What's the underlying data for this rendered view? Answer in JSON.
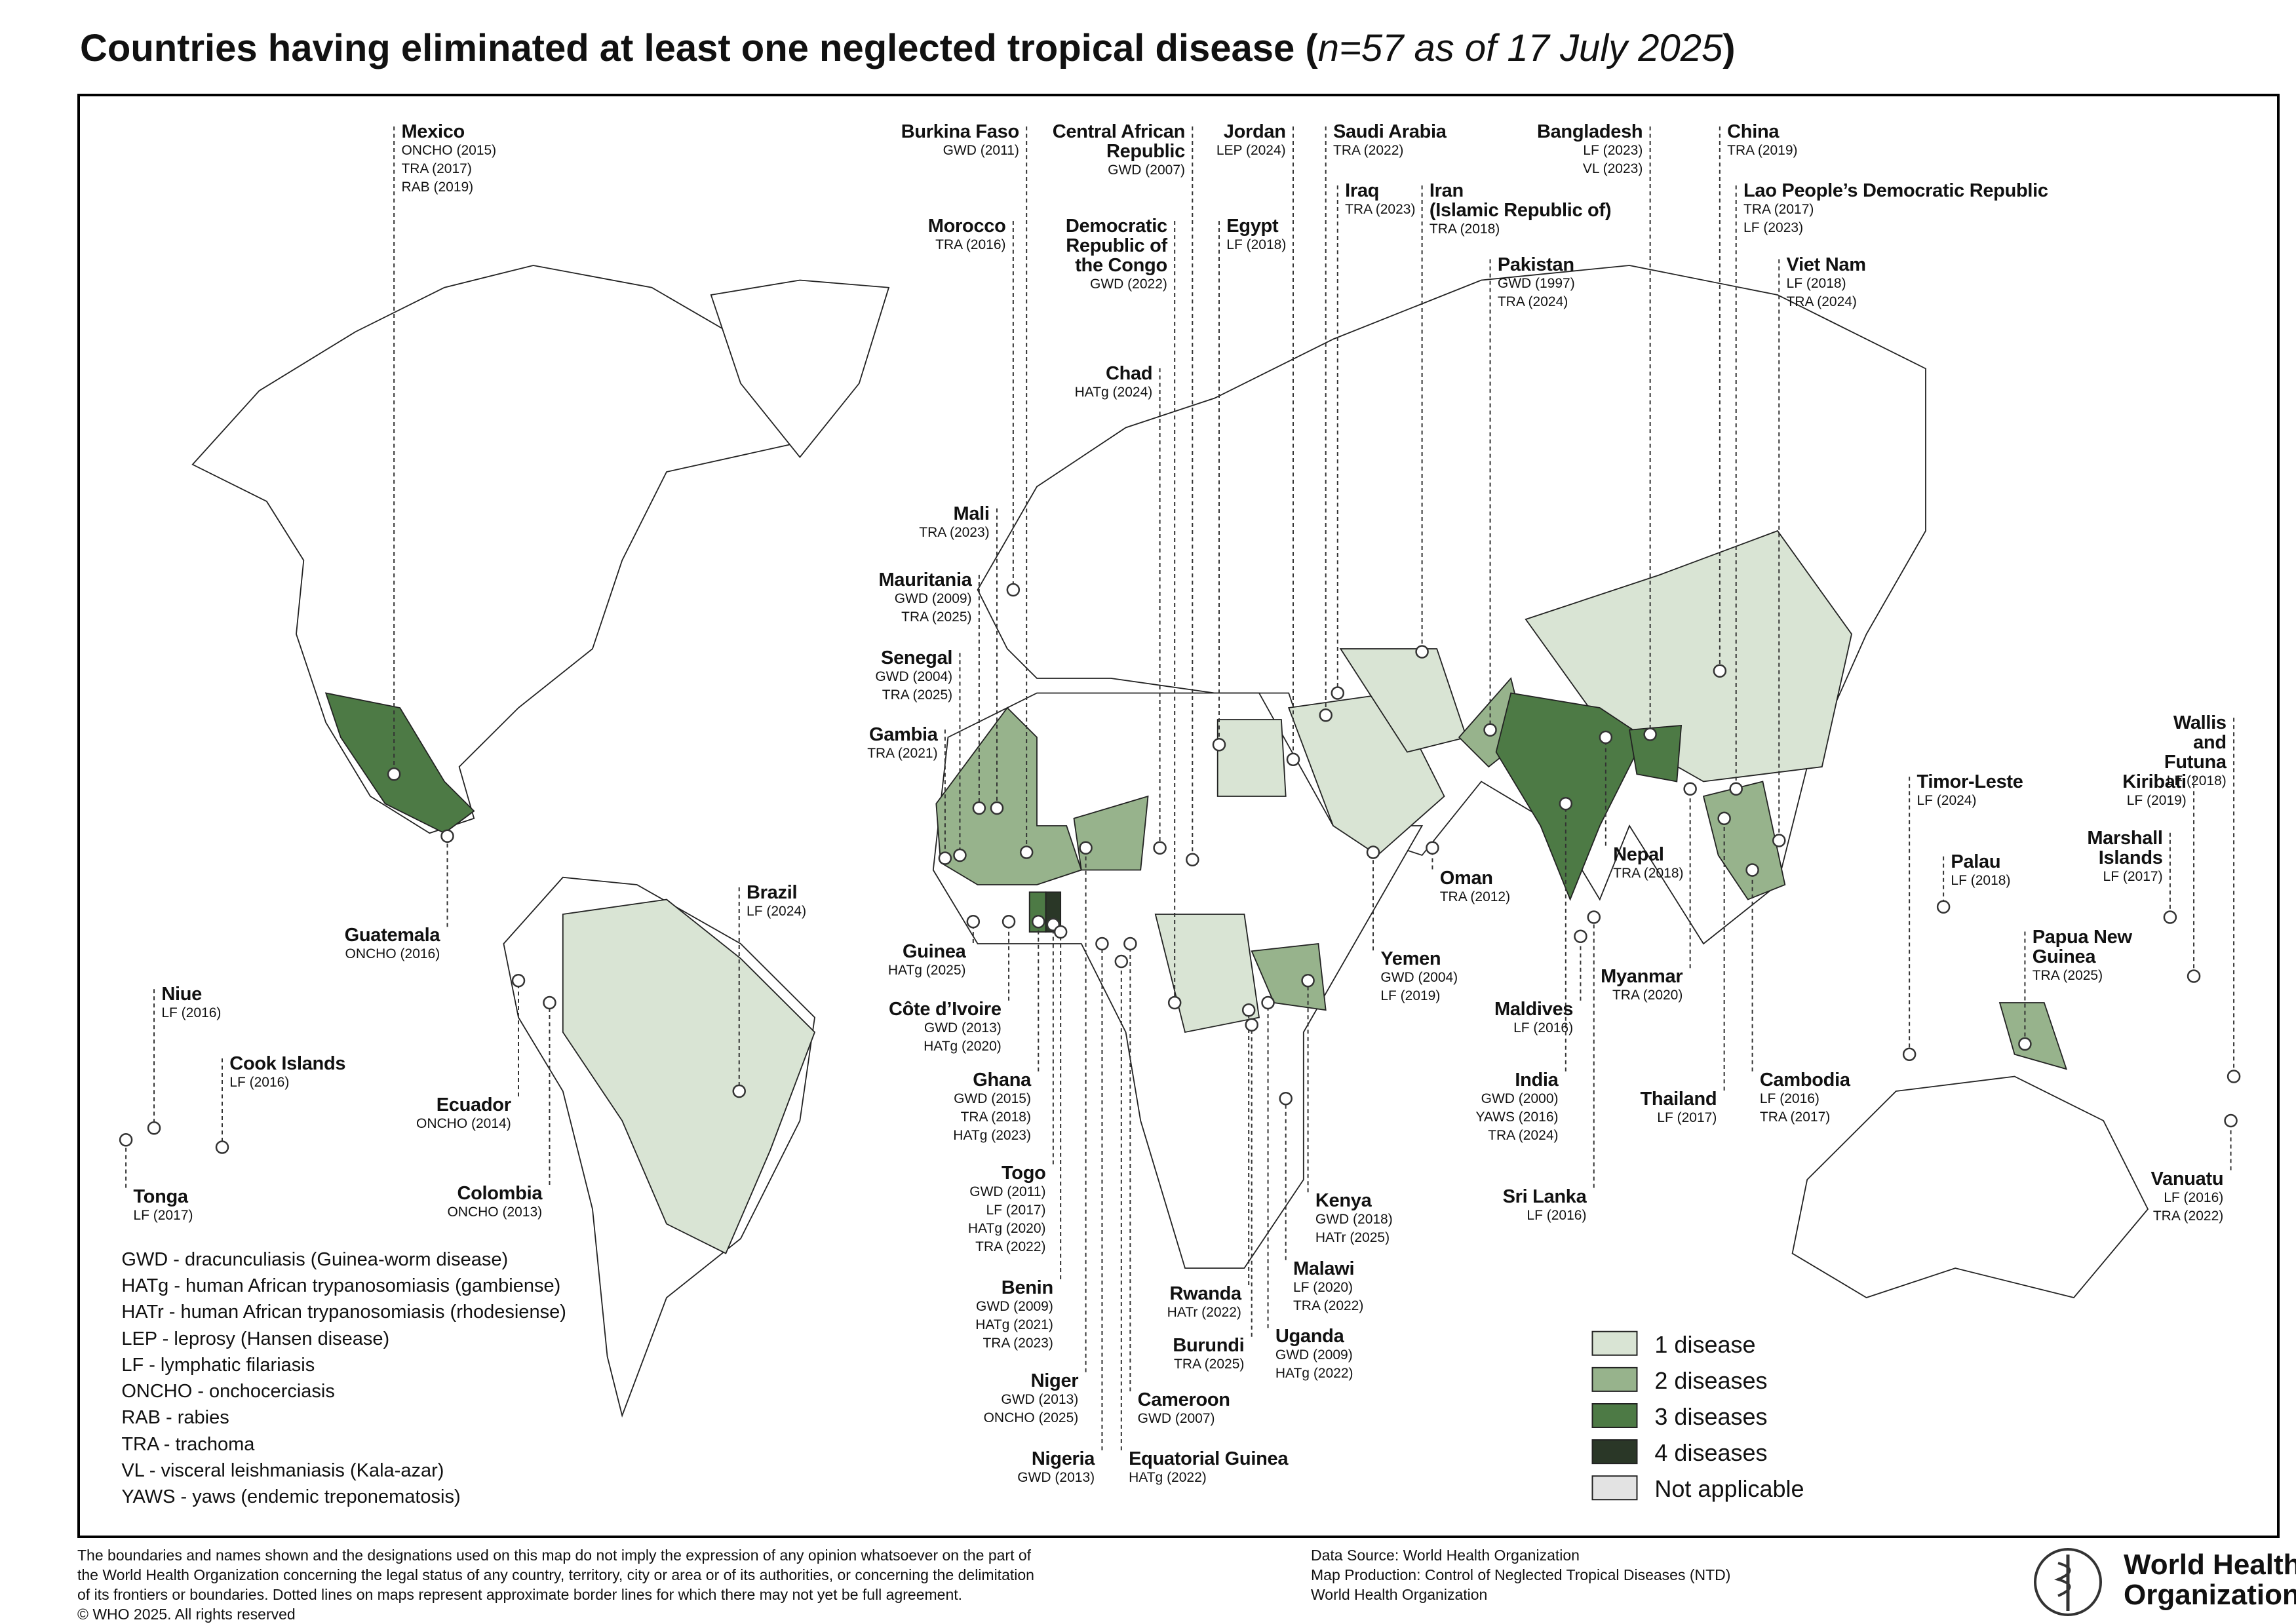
{
  "title": [
    "Countries having eliminated at least one neglected tropical disease (",
    "n=57 as of 17 July 2025",
    ")"
  ],
  "countries": [
    {
      "name": "Mexico",
      "items": [
        "ONCHO (2015)",
        "TRA (2017)",
        "RAB (2019)"
      ]
    },
    {
      "name": "Burkina Faso",
      "items": [
        "GWD (2011)"
      ]
    },
    {
      "name": "Central African\nRepublic",
      "items": [
        "GWD (2007)"
      ]
    },
    {
      "name": "Jordan",
      "items": [
        "LEP (2024)"
      ]
    },
    {
      "name": "Saudi Arabia",
      "items": [
        "TRA (2022)"
      ]
    },
    {
      "name": "Bangladesh",
      "items": [
        "LF (2023)",
        "VL (2023)"
      ]
    },
    {
      "name": "China",
      "items": [
        "TRA (2019)"
      ]
    },
    {
      "name": "Morocco",
      "items": [
        "TRA (2016)"
      ]
    },
    {
      "name": "Democratic\nRepublic of\nthe Congo",
      "items": [
        "GWD (2022)"
      ]
    },
    {
      "name": "Egypt",
      "items": [
        "LF (2018)"
      ]
    },
    {
      "name": "Iraq",
      "items": [
        "TRA (2023)"
      ]
    },
    {
      "name": "Iran\n(Islamic Republic of)",
      "items": [
        "TRA (2018)"
      ]
    },
    {
      "name": "Lao People’s Democratic Republic",
      "items": [
        "TRA (2017)",
        "LF (2023)"
      ]
    },
    {
      "name": "Pakistan",
      "items": [
        "GWD (1997)",
        "TRA (2024)"
      ]
    },
    {
      "name": "Viet Nam",
      "items": [
        "LF (2018)",
        "TRA (2024)"
      ]
    },
    {
      "name": "Chad",
      "items": [
        "HATg (2024)"
      ]
    },
    {
      "name": "Mali",
      "items": [
        "TRA (2023)"
      ]
    },
    {
      "name": "Mauritania",
      "items": [
        "GWD (2009)",
        "TRA (2025)"
      ]
    },
    {
      "name": "Senegal",
      "items": [
        "GWD (2004)",
        "TRA (2025)"
      ]
    },
    {
      "name": "Gambia",
      "items": [
        "TRA (2021)"
      ]
    },
    {
      "name": "Wallis and Futuna",
      "items": [
        "LF (2018)"
      ]
    },
    {
      "name": "Timor-Leste",
      "items": [
        "LF (2024)"
      ]
    },
    {
      "name": "Kiribati",
      "items": [
        "LF (2019)"
      ]
    },
    {
      "name": "Marshall Islands",
      "items": [
        "LF (2017)"
      ]
    },
    {
      "name": "Palau",
      "items": [
        "LF (2018)"
      ]
    },
    {
      "name": "Oman",
      "items": [
        "TRA (2012)"
      ]
    },
    {
      "name": "Nepal",
      "items": [
        "TRA (2018)"
      ]
    },
    {
      "name": "Brazil",
      "items": [
        "LF (2024)"
      ]
    },
    {
      "name": "Guatemala",
      "items": [
        "ONCHO (2016)"
      ]
    },
    {
      "name": "Papua New\nGuinea",
      "items": [
        "TRA (2025)"
      ]
    },
    {
      "name": "Guinea",
      "items": [
        "HATg (2025)"
      ]
    },
    {
      "name": "Yemen",
      "items": [
        "GWD (2004)",
        "LF (2019)"
      ]
    },
    {
      "name": "Myanmar",
      "items": [
        "TRA (2020)"
      ]
    },
    {
      "name": "Niue",
      "items": [
        "LF (2016)"
      ]
    },
    {
      "name": "Côte d’Ivoire",
      "items": [
        "GWD (2013)",
        "HATg (2020)"
      ]
    },
    {
      "name": "Maldives",
      "items": [
        "LF (2016)"
      ]
    },
    {
      "name": "Cook Islands",
      "items": [
        "LF (2016)"
      ]
    },
    {
      "name": "Ghana",
      "items": [
        "GWD (2015)",
        "TRA (2018)",
        "HATg (2023)"
      ]
    },
    {
      "name": "India",
      "items": [
        "GWD (2000)",
        "YAWS (2016)",
        "TRA (2024)"
      ]
    },
    {
      "name": "Cambodia",
      "items": [
        "LF (2016)",
        "TRA (2017)"
      ]
    },
    {
      "name": "Thailand",
      "items": [
        "LF (2017)"
      ]
    },
    {
      "name": "Ecuador",
      "items": [
        "ONCHO (2014)"
      ]
    },
    {
      "name": "Togo",
      "items": [
        "GWD (2011)",
        "LF (2017)",
        "HATg (2020)",
        "TRA (2022)"
      ]
    },
    {
      "name": "Vanuatu",
      "items": [
        "LF (2016)",
        "TRA (2022)"
      ]
    },
    {
      "name": "Tonga",
      "items": [
        "LF (2017)"
      ]
    },
    {
      "name": "Colombia",
      "items": [
        "ONCHO (2013)"
      ]
    },
    {
      "name": "Kenya",
      "items": [
        "GWD (2018)",
        "HATr (2025)"
      ]
    },
    {
      "name": "Sri Lanka",
      "items": [
        "LF (2016)"
      ]
    },
    {
      "name": "Malawi",
      "items": [
        "LF (2020)",
        "TRA (2022)"
      ]
    },
    {
      "name": "Benin",
      "items": [
        "GWD (2009)",
        "HATg (2021)",
        "TRA (2023)"
      ]
    },
    {
      "name": "Rwanda",
      "items": [
        "HATr (2022)"
      ]
    },
    {
      "name": "Uganda",
      "items": [
        "GWD (2009)",
        "HATg (2022)"
      ]
    },
    {
      "name": "Burundi",
      "items": [
        "TRA (2025)"
      ]
    },
    {
      "name": "Niger",
      "items": [
        "GWD (2013)",
        "ONCHO (2025)"
      ]
    },
    {
      "name": "Cameroon",
      "items": [
        "GWD (2007)"
      ]
    },
    {
      "name": "Nigeria",
      "items": [
        "GWD (2013)"
      ]
    },
    {
      "name": "Equatorial Guinea",
      "items": [
        "HATg (2022)"
      ]
    }
  ],
  "abbreviations": [
    "GWD - dracunculiasis (Guinea-worm disease)",
    "HATg - human African trypanosomiasis (gambiense)",
    "HATr - human African trypanosomiasis (rhodesiense)",
    "LEP - leprosy (Hansen disease)",
    "LF - lymphatic filariasis",
    "ONCHO - onchocerciasis",
    "RAB - rabies",
    "TRA - trachoma",
    "VL - visceral leishmaniasis (Kala-azar)",
    "YAWS - yaws (endemic treponematosis)"
  ],
  "legend": [
    {
      "label": "1 disease",
      "color": "#d9e4d4"
    },
    {
      "label": "2 diseases",
      "color": "#97b38c"
    },
    {
      "label": "3 diseases",
      "color": "#4d7a45"
    },
    {
      "label": "4 diseases",
      "color": "#2a3727"
    },
    {
      "label": "Not applicable",
      "color": "#e3e3e3"
    }
  ],
  "disclaimer": [
    "The boundaries and names shown and the designations used on this map do not imply the expression of any opinion whatsoever on the part of",
    "the World Health Organization concerning the legal status of any country, territory, city or area or of its authorities, or concerning the delimitation",
    "of its frontiers or boundaries. Dotted lines on maps represent approximate border lines for which there may not yet be full agreement.",
    "© WHO 2025. All rights reserved"
  ],
  "source": [
    "Data Source: World Health Organization",
    "Map Production: Control of Neglected Tropical Diseases (NTD)",
    "World Health Organization"
  ],
  "logo": [
    "World Health",
    "Organization"
  ]
}
